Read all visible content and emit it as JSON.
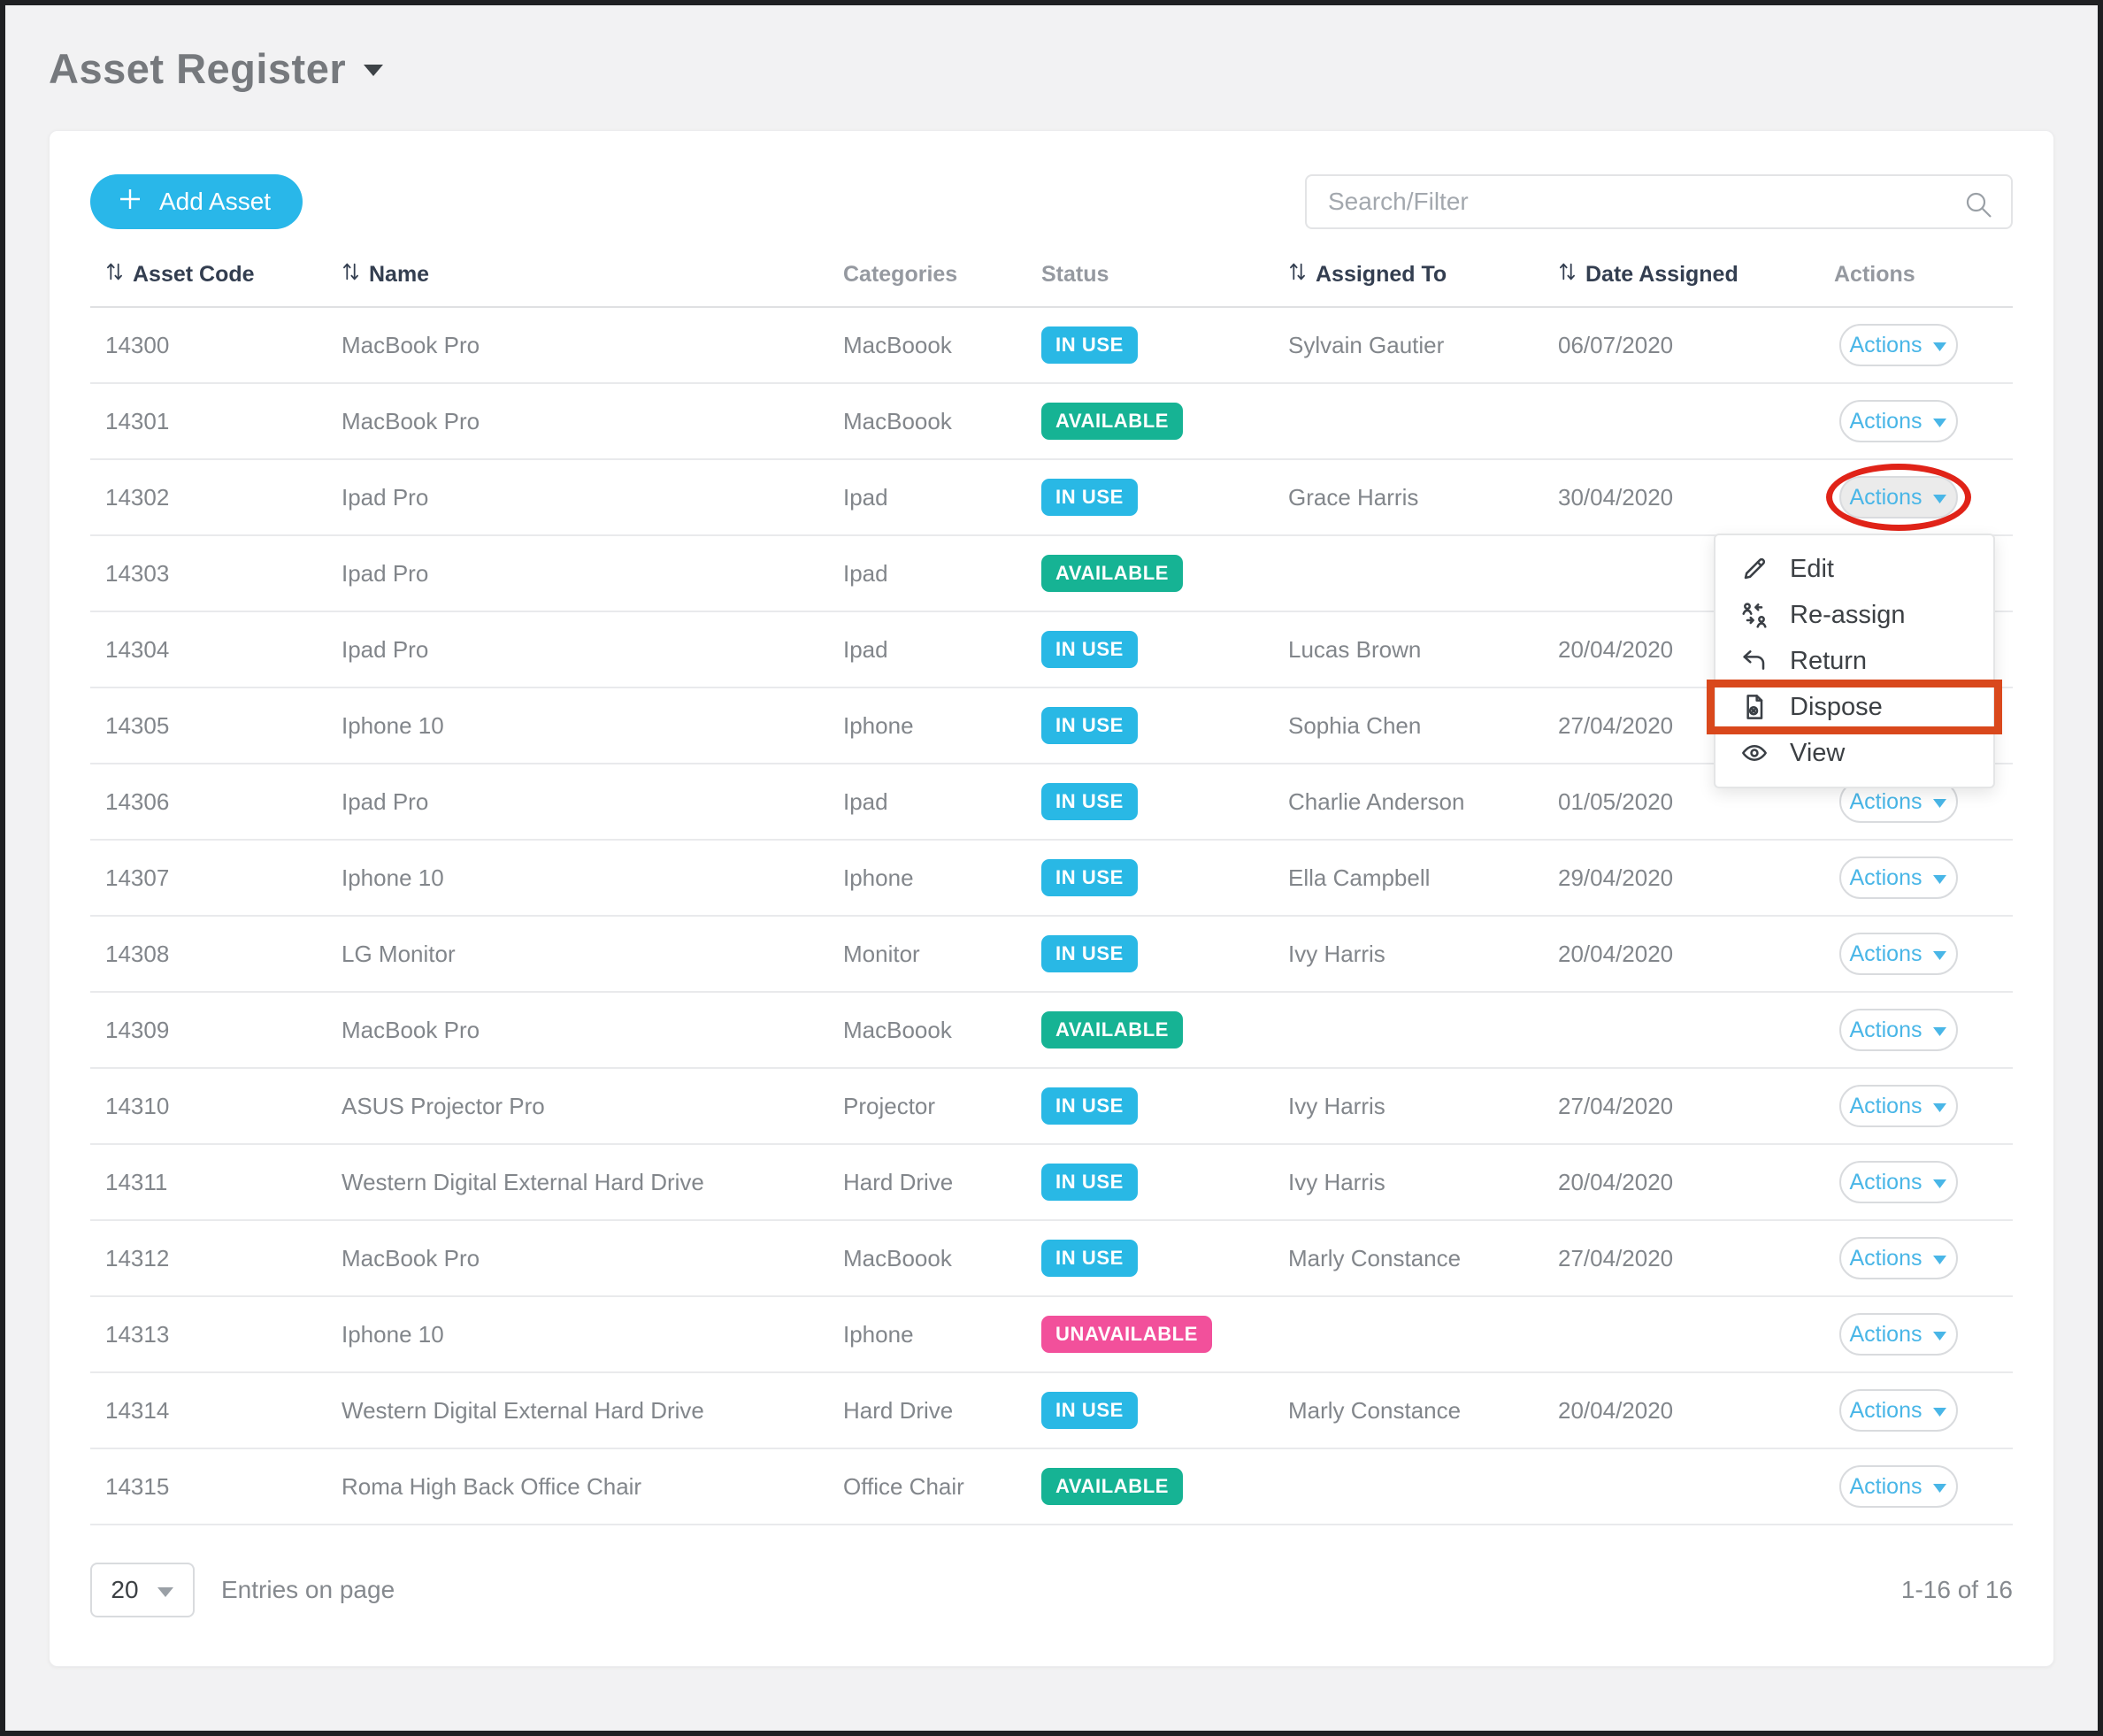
{
  "page": {
    "title": "Asset Register"
  },
  "toolbar": {
    "add_asset_label": "Add Asset",
    "search_placeholder": "Search/Filter",
    "icons": {
      "add": "plus-icon",
      "search": "search-icon"
    }
  },
  "table": {
    "columns": [
      {
        "label": "Asset Code",
        "sortable": true
      },
      {
        "label": "Name",
        "sortable": true
      },
      {
        "label": "Categories",
        "sortable": false
      },
      {
        "label": "Status",
        "sortable": false
      },
      {
        "label": "Assigned To",
        "sortable": true
      },
      {
        "label": "Date Assigned",
        "sortable": true
      },
      {
        "label": "Actions",
        "sortable": false
      }
    ],
    "actions_label": "Actions",
    "rows": [
      {
        "code": "14300",
        "name": "MacBook Pro",
        "category": "MacBoook",
        "status": "IN USE",
        "assigned_to": "Sylvain Gautier",
        "date_assigned": "06/07/2020"
      },
      {
        "code": "14301",
        "name": "MacBook Pro",
        "category": "MacBoook",
        "status": "AVAILABLE",
        "assigned_to": "",
        "date_assigned": ""
      },
      {
        "code": "14302",
        "name": "Ipad Pro",
        "category": "Ipad",
        "status": "IN USE",
        "assigned_to": "Grace Harris",
        "date_assigned": "30/04/2020"
      },
      {
        "code": "14303",
        "name": "Ipad Pro",
        "category": "Ipad",
        "status": "AVAILABLE",
        "assigned_to": "",
        "date_assigned": ""
      },
      {
        "code": "14304",
        "name": "Ipad Pro",
        "category": "Ipad",
        "status": "IN USE",
        "assigned_to": "Lucas Brown",
        "date_assigned": "20/04/2020"
      },
      {
        "code": "14305",
        "name": "Iphone 10",
        "category": "Iphone",
        "status": "IN USE",
        "assigned_to": "Sophia Chen",
        "date_assigned": "27/04/2020"
      },
      {
        "code": "14306",
        "name": "Ipad Pro",
        "category": "Ipad",
        "status": "IN USE",
        "assigned_to": "Charlie Anderson",
        "date_assigned": "01/05/2020"
      },
      {
        "code": "14307",
        "name": "Iphone 10",
        "category": "Iphone",
        "status": "IN USE",
        "assigned_to": "Ella Campbell",
        "date_assigned": "29/04/2020"
      },
      {
        "code": "14308",
        "name": "LG Monitor",
        "category": "Monitor",
        "status": "IN USE",
        "assigned_to": "Ivy Harris",
        "date_assigned": "20/04/2020"
      },
      {
        "code": "14309",
        "name": "MacBook Pro",
        "category": "MacBoook",
        "status": "AVAILABLE",
        "assigned_to": "",
        "date_assigned": ""
      },
      {
        "code": "14310",
        "name": "ASUS Projector Pro",
        "category": "Projector",
        "status": "IN USE",
        "assigned_to": "Ivy Harris",
        "date_assigned": "27/04/2020"
      },
      {
        "code": "14311",
        "name": "Western Digital External Hard Drive",
        "category": "Hard Drive",
        "status": "IN USE",
        "assigned_to": "Ivy Harris",
        "date_assigned": "20/04/2020"
      },
      {
        "code": "14312",
        "name": "MacBook Pro",
        "category": "MacBoook",
        "status": "IN USE",
        "assigned_to": "Marly Constance",
        "date_assigned": "27/04/2020"
      },
      {
        "code": "14313",
        "name": "Iphone 10",
        "category": "Iphone",
        "status": "UNAVAILABLE",
        "assigned_to": "",
        "date_assigned": ""
      },
      {
        "code": "14314",
        "name": "Western Digital External Hard Drive",
        "category": "Hard Drive",
        "status": "IN USE",
        "assigned_to": "Marly Constance",
        "date_assigned": "20/04/2020"
      },
      {
        "code": "14315",
        "name": "Roma High Back Office Chair",
        "category": "Office Chair",
        "status": "AVAILABLE",
        "assigned_to": "",
        "date_assigned": ""
      }
    ]
  },
  "status_colors": {
    "in_use": "#29b8e5",
    "available": "#16b394",
    "unavailable": "#f2509b"
  },
  "dropdown_menu": {
    "anchor_row_code": "14302",
    "items": [
      {
        "label": "Edit",
        "icon": "pencil-icon",
        "highlighted": false
      },
      {
        "label": "Re-assign",
        "icon": "reassign-icon",
        "highlighted": false
      },
      {
        "label": "Return",
        "icon": "return-arrow-icon",
        "highlighted": false
      },
      {
        "label": "Dispose",
        "icon": "dispose-document-icon",
        "highlighted": true
      },
      {
        "label": "View",
        "icon": "eye-icon",
        "highlighted": false
      }
    ]
  },
  "annotations": {
    "circled_actions_row_code": "14302",
    "circle_color": "#e02318",
    "highlight_rect_color": "#d9481c",
    "highlighted_menu_item": "Dispose"
  },
  "footer": {
    "page_size": "20",
    "entries_label": "Entries on page",
    "range_label": "1-16 of 16"
  }
}
